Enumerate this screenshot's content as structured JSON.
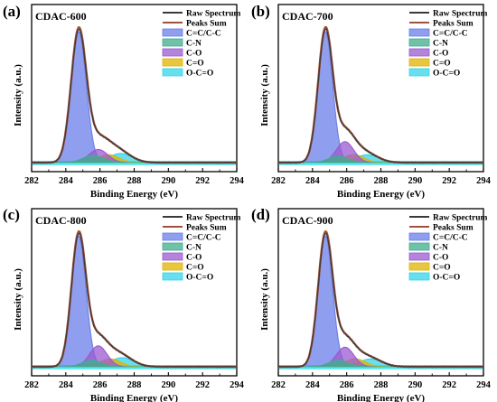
{
  "chart_data": [
    {
      "type": "area",
      "panel": "(a)",
      "sample": "CDAC-600",
      "xlabel": "Binding Energy (eV)",
      "ylabel": "Intensity (a.u.)",
      "xlim": [
        282,
        294
      ],
      "xticks": [
        282,
        284,
        286,
        288,
        290,
        292,
        294
      ],
      "legend": [
        "Raw Spectrum",
        "Peaks Sum",
        "C=C/C-C",
        "C-N",
        "C-O",
        "C=O",
        "O-C=O"
      ],
      "legend_position": "top-right",
      "grid": false,
      "peaks": [
        {
          "name": "C=C/C-C",
          "center": 284.75,
          "height": 1.0,
          "fwhm": 1.05
        },
        {
          "name": "C-N",
          "center": 285.6,
          "height": 0.055,
          "fwhm": 1.4
        },
        {
          "name": "C-O",
          "center": 285.9,
          "height": 0.1,
          "fwhm": 1.3
        },
        {
          "name": "C=O",
          "center": 286.5,
          "height": 0.06,
          "fwhm": 1.4
        },
        {
          "name": "O-C=O",
          "center": 287.2,
          "height": 0.07,
          "fwhm": 1.6
        }
      ]
    },
    {
      "type": "area",
      "panel": "(b)",
      "sample": "CDAC-700",
      "xlabel": "Binding Energy (eV)",
      "ylabel": "Intensity (a.u.)",
      "xlim": [
        282,
        294
      ],
      "xticks": [
        282,
        284,
        286,
        288,
        290,
        292,
        294
      ],
      "legend": [
        "Raw Spectrum",
        "Peaks Sum",
        "C=C/C-C",
        "C-N",
        "C-O",
        "C=O",
        "O-C=O"
      ],
      "legend_position": "top-right",
      "grid": false,
      "peaks": [
        {
          "name": "C=C/C-C",
          "center": 284.75,
          "height": 1.0,
          "fwhm": 1.0
        },
        {
          "name": "C-N",
          "center": 285.5,
          "height": 0.05,
          "fwhm": 1.3
        },
        {
          "name": "C-O",
          "center": 285.9,
          "height": 0.16,
          "fwhm": 1.2
        },
        {
          "name": "C=O",
          "center": 286.4,
          "height": 0.06,
          "fwhm": 1.4
        },
        {
          "name": "O-C=O",
          "center": 287.2,
          "height": 0.06,
          "fwhm": 1.6
        }
      ]
    },
    {
      "type": "area",
      "panel": "(c)",
      "sample": "CDAC-800",
      "xlabel": "Binding Energy (eV)",
      "ylabel": "Intensity (a.u.)",
      "xlim": [
        282,
        294
      ],
      "xticks": [
        282,
        284,
        286,
        288,
        290,
        292,
        294
      ],
      "legend": [
        "Raw Spectrum",
        "Peaks Sum",
        "C=C/C-C",
        "C-N",
        "C-O",
        "C=O",
        "O-C=O"
      ],
      "legend_position": "top-right",
      "grid": false,
      "peaks": [
        {
          "name": "C=C/C-C",
          "center": 284.75,
          "height": 1.0,
          "fwhm": 1.0
        },
        {
          "name": "C-N",
          "center": 285.5,
          "height": 0.05,
          "fwhm": 1.3
        },
        {
          "name": "C-O",
          "center": 285.9,
          "height": 0.16,
          "fwhm": 1.2
        },
        {
          "name": "C=O",
          "center": 286.6,
          "height": 0.06,
          "fwhm": 1.4
        },
        {
          "name": "O-C=O",
          "center": 287.3,
          "height": 0.07,
          "fwhm": 1.6
        }
      ]
    },
    {
      "type": "area",
      "panel": "(d)",
      "sample": "CDAC-900",
      "xlabel": "Binding Energy (eV)",
      "ylabel": "Intensity (a.u.)",
      "xlim": [
        282,
        294
      ],
      "xticks": [
        282,
        284,
        286,
        288,
        290,
        292,
        294
      ],
      "legend": [
        "Raw Spectrum",
        "Peaks Sum",
        "C=C/C-C",
        "C-N",
        "C-O",
        "C=O",
        "O-C=O"
      ],
      "legend_position": "top-right",
      "grid": false,
      "peaks": [
        {
          "name": "C=C/C-C",
          "center": 284.75,
          "height": 1.0,
          "fwhm": 1.0
        },
        {
          "name": "C-N",
          "center": 285.5,
          "height": 0.05,
          "fwhm": 1.3
        },
        {
          "name": "C-O",
          "center": 285.9,
          "height": 0.15,
          "fwhm": 1.2
        },
        {
          "name": "C=O",
          "center": 286.5,
          "height": 0.06,
          "fwhm": 1.4
        },
        {
          "name": "O-C=O",
          "center": 287.4,
          "height": 0.06,
          "fwhm": 1.6
        }
      ]
    }
  ],
  "colors": {
    "raw_spectrum": "#3a3a3a",
    "peaks_sum": "#a0523c",
    "C=C/C-C": "#6a7ee8",
    "C-N": "#3fae8c",
    "C-O": "#9b59d0",
    "C=O": "#e0b400",
    "O-C=O": "#35d4e8",
    "baseline": "#55e8f0"
  }
}
